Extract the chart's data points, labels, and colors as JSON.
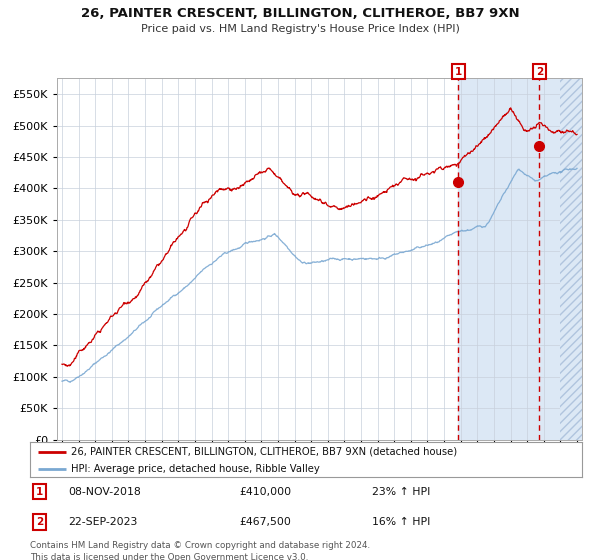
{
  "title": "26, PAINTER CRESCENT, BILLINGTON, CLITHEROE, BB7 9XN",
  "subtitle": "Price paid vs. HM Land Registry's House Price Index (HPI)",
  "legend_line1": "26, PAINTER CRESCENT, BILLINGTON, CLITHEROE, BB7 9XN (detached house)",
  "legend_line2": "HPI: Average price, detached house, Ribble Valley",
  "annotation1_date": "08-NOV-2018",
  "annotation1_price": "£410,000",
  "annotation1_hpi": "23% ↑ HPI",
  "annotation2_date": "22-SEP-2023",
  "annotation2_price": "£467,500",
  "annotation2_hpi": "16% ↑ HPI",
  "footer": "Contains HM Land Registry data © Crown copyright and database right 2024.\nThis data is licensed under the Open Government Licence v3.0.",
  "red_line_color": "#cc0000",
  "blue_line_color": "#7aa8d2",
  "shade_color": "#dce8f5",
  "hatch_color": "#c0d0e8",
  "plot_bg_color": "#ffffff",
  "grid_color": "#c8d0dc",
  "anno_box_color": "#cc0000",
  "ylim": [
    0,
    575000
  ],
  "yticks": [
    0,
    50000,
    100000,
    150000,
    200000,
    250000,
    300000,
    350000,
    400000,
    450000,
    500000,
    550000
  ],
  "year_start": 1995,
  "year_end": 2026,
  "point1_year": 2018.86,
  "point1_value": 410000,
  "point2_year": 2023.73,
  "point2_value": 467500
}
